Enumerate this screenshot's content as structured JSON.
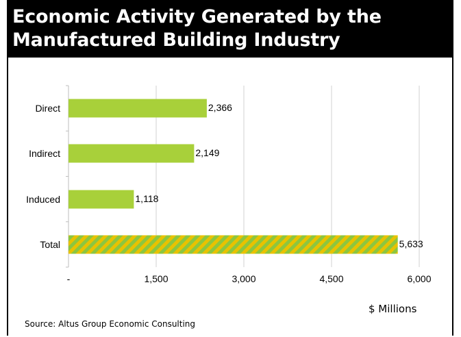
{
  "header": {
    "title_line1": "Economic Activity Generated by the",
    "title_line2": "Manufactured Building Industry"
  },
  "chart_data": {
    "type": "bar",
    "orientation": "horizontal",
    "categories": [
      "Direct",
      "Indirect",
      "Induced",
      "Total"
    ],
    "values": [
      2366,
      2149,
      1118,
      5633
    ],
    "value_labels": [
      "2,366",
      "2,149",
      "1,118",
      "5,633"
    ],
    "x_ticks": [
      "-",
      "1,500",
      "3,000",
      "4,500",
      "6,000"
    ],
    "x_tick_values": [
      0,
      1500,
      3000,
      4500,
      6000
    ],
    "xlim": [
      0,
      6000
    ],
    "xlabel": "$ Millions",
    "grid": "vertical",
    "colors": {
      "bar": "#a8d03a",
      "total_stripe_a": "#e8c200",
      "total_stripe_b": "#8cc63f",
      "grid": "#d0d0d0"
    },
    "total_bar_pattern": "diagonal-stripes"
  },
  "footer": {
    "source": "Source: Altus Group Economic Consulting"
  }
}
